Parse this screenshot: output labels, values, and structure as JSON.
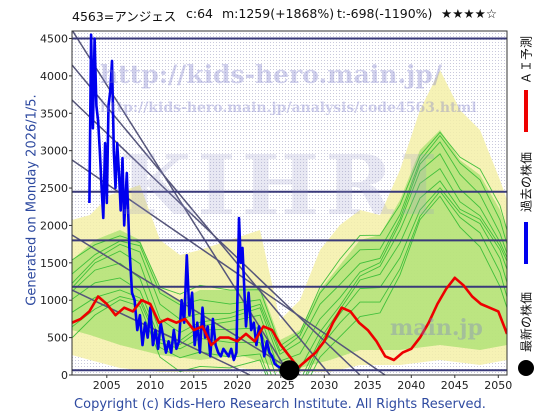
{
  "header": {
    "code_name": "4563=アンジェス",
    "c": "c:64",
    "m": "m:1259(+1868%)",
    "t": "t:-698(-1190%)",
    "stars": "★★★★☆"
  },
  "watermark": {
    "url": "http://kids-hero.main.jp/",
    "analysis_url": "http://kids-hero.main.jp/analysis/code4563.html",
    "logo": "KIHRI",
    "bottom_url": "main.jp"
  },
  "generated_label": "Generated on Monday 2026/1/5.",
  "legend": {
    "ai_forecast": "ＡＩ予測",
    "past_price": "過去の株価",
    "latest_price": "最新の株価"
  },
  "footer": "Copyright (c) Kids-Hero Research Institute. All Rights Reserved.",
  "colors": {
    "ai_forecast": "#ee0000",
    "past_price": "#0000ee",
    "forecast_band": "#33bb33",
    "band_fill": "#f5f0a8",
    "level_line": "#3a3a7a",
    "trend_line": "#55557a"
  },
  "chart_data": {
    "type": "line",
    "xlim": [
      2001,
      2051
    ],
    "ylim": [
      0,
      4600
    ],
    "x_ticks": [
      2005,
      2010,
      2015,
      2020,
      2025,
      2030,
      2035,
      2040,
      2045,
      2050
    ],
    "y_ticks": [
      0,
      500,
      1000,
      1500,
      2000,
      2500,
      3000,
      3500,
      4000,
      4500
    ],
    "horizontal_levels": [
      4500,
      2450,
      1800,
      1180,
      64
    ],
    "latest_point": {
      "x": 2026.0,
      "y": 64
    },
    "series": [
      {
        "name": "過去の株価",
        "x": [
          2003.0,
          2003.2,
          2003.4,
          2003.6,
          2003.8,
          2004.0,
          2004.2,
          2004.4,
          2004.6,
          2004.8,
          2005.0,
          2005.2,
          2005.4,
          2005.6,
          2005.8,
          2006.0,
          2006.2,
          2006.4,
          2006.6,
          2006.8,
          2007.0,
          2007.3,
          2007.6,
          2007.9,
          2008.2,
          2008.5,
          2008.8,
          2009.1,
          2009.4,
          2009.7,
          2010.0,
          2010.3,
          2010.6,
          2010.9,
          2011.2,
          2011.5,
          2011.8,
          2012.1,
          2012.4,
          2012.7,
          2013.0,
          2013.3,
          2013.6,
          2013.9,
          2014.2,
          2014.5,
          2014.8,
          2015.1,
          2015.4,
          2015.7,
          2016.0,
          2016.3,
          2016.6,
          2016.9,
          2017.2,
          2017.5,
          2017.8,
          2018.1,
          2018.4,
          2018.7,
          2019.0,
          2019.3,
          2019.6,
          2019.9,
          2020.2,
          2020.4,
          2020.6,
          2020.8,
          2021.0,
          2021.3,
          2021.6,
          2021.9,
          2022.2,
          2022.5,
          2022.8,
          2023.1,
          2023.4,
          2023.7,
          2024.0,
          2024.3,
          2024.6,
          2024.9,
          2025.2,
          2025.5,
          2025.8,
          2026.0
        ],
        "y": [
          2300,
          4550,
          3300,
          4500,
          3600,
          3400,
          3000,
          2500,
          2100,
          3100,
          2300,
          3600,
          3800,
          4200,
          3000,
          2500,
          3100,
          2700,
          2200,
          2900,
          2000,
          2700,
          1700,
          1100,
          1000,
          600,
          800,
          400,
          700,
          500,
          900,
          400,
          600,
          350,
          700,
          500,
          300,
          450,
          300,
          600,
          350,
          450,
          1000,
          700,
          1600,
          800,
          1100,
          400,
          700,
          300,
          900,
          500,
          650,
          250,
          750,
          400,
          300,
          250,
          350,
          300,
          250,
          350,
          200,
          300,
          2100,
          1500,
          1700,
          1150,
          650,
          1100,
          600,
          700,
          400,
          650,
          500,
          250,
          450,
          300,
          250,
          150,
          120,
          100,
          80,
          70,
          65,
          64
        ]
      },
      {
        "name": "ＡＩ予測",
        "x": [
          2001,
          2002,
          2003,
          2004,
          2005,
          2006,
          2007,
          2008,
          2009,
          2010,
          2011,
          2012,
          2013,
          2014,
          2015,
          2016,
          2017,
          2018,
          2019,
          2020,
          2021,
          2022,
          2023,
          2024,
          2025,
          2026,
          2027,
          2028,
          2029,
          2030,
          2031,
          2032,
          2033,
          2034,
          2035,
          2036,
          2037,
          2038,
          2039,
          2040,
          2041,
          2042,
          2043,
          2044,
          2045,
          2046,
          2047,
          2048,
          2049,
          2050,
          2051
        ],
        "y": [
          700,
          750,
          850,
          1050,
          950,
          800,
          900,
          850,
          1000,
          950,
          700,
          750,
          700,
          750,
          600,
          650,
          400,
          500,
          500,
          450,
          550,
          450,
          650,
          600,
          400,
          250,
          100,
          200,
          300,
          450,
          700,
          900,
          850,
          700,
          600,
          450,
          250,
          200,
          300,
          350,
          500,
          700,
          950,
          1150,
          1300,
          1200,
          1050,
          950,
          900,
          850,
          550
        ]
      }
    ]
  }
}
